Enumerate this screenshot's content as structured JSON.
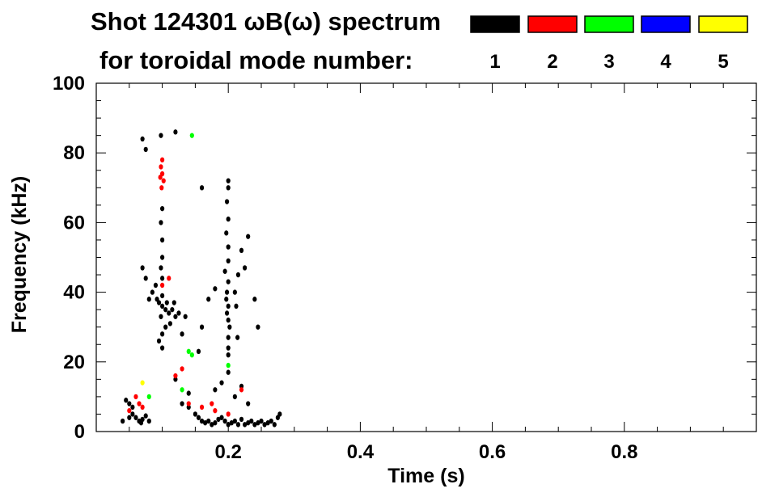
{
  "title_line1": "Shot 124301 ωB(ω) spectrum",
  "title_line2": "for toroidal mode number:",
  "legend": [
    {
      "label": "1",
      "color": "#000000"
    },
    {
      "label": "2",
      "color": "#ff0000"
    },
    {
      "label": "3",
      "color": "#00ff00"
    },
    {
      "label": "4",
      "color": "#0000ff"
    },
    {
      "label": "5",
      "color": "#ffff00"
    }
  ],
  "chart_data": {
    "type": "scatter",
    "title": "Shot 124301 ωB(ω) spectrum",
    "subtitle": "for toroidal mode number:",
    "xlabel": "Time (s)",
    "ylabel": "Frequency (kHz)",
    "xlim": [
      0.0,
      1.0
    ],
    "ylim": [
      0,
      100
    ],
    "xticks": [
      0.2,
      0.4,
      0.6,
      0.8
    ],
    "xtick_labels": [
      "0.2",
      "0.4",
      "0.6",
      "0.8"
    ],
    "yticks": [
      0,
      20,
      40,
      60,
      80,
      100
    ],
    "ytick_labels": [
      "0",
      "20",
      "40",
      "60",
      "80",
      "100"
    ],
    "grid": false,
    "series": [
      {
        "name": "1",
        "color": "#000000",
        "points": [
          [
            0.095,
            37
          ],
          [
            0.1,
            36
          ],
          [
            0.105,
            35
          ],
          [
            0.098,
            33
          ],
          [
            0.11,
            34
          ],
          [
            0.092,
            38
          ],
          [
            0.1,
            39
          ],
          [
            0.107,
            37
          ],
          [
            0.115,
            35
          ],
          [
            0.12,
            33
          ],
          [
            0.125,
            34
          ],
          [
            0.135,
            33
          ],
          [
            0.09,
            42
          ],
          [
            0.085,
            40
          ],
          [
            0.08,
            38
          ],
          [
            0.075,
            44
          ],
          [
            0.07,
            47
          ],
          [
            0.1,
            44
          ],
          [
            0.1,
            50
          ],
          [
            0.1,
            55
          ],
          [
            0.098,
            60
          ],
          [
            0.1,
            64
          ],
          [
            0.105,
            30
          ],
          [
            0.1,
            28
          ],
          [
            0.095,
            26
          ],
          [
            0.1,
            24
          ],
          [
            0.098,
            47
          ],
          [
            0.112,
            31
          ],
          [
            0.118,
            37
          ],
          [
            0.197,
            38
          ],
          [
            0.2,
            36
          ],
          [
            0.198,
            34
          ],
          [
            0.2,
            32
          ],
          [
            0.202,
            30
          ],
          [
            0.2,
            27
          ],
          [
            0.2,
            24
          ],
          [
            0.2,
            22
          ],
          [
            0.198,
            40
          ],
          [
            0.2,
            43
          ],
          [
            0.195,
            46
          ],
          [
            0.2,
            49
          ],
          [
            0.2,
            53
          ],
          [
            0.197,
            57
          ],
          [
            0.2,
            61
          ],
          [
            0.198,
            66
          ],
          [
            0.2,
            70
          ],
          [
            0.21,
            40
          ],
          [
            0.212,
            36
          ],
          [
            0.215,
            45
          ],
          [
            0.18,
            41
          ],
          [
            0.17,
            38
          ],
          [
            0.24,
            38
          ],
          [
            0.245,
            30
          ],
          [
            0.23,
            56
          ],
          [
            0.225,
            47
          ],
          [
            0.22,
            52
          ],
          [
            0.214,
            27
          ],
          [
            0.04,
            3
          ],
          [
            0.05,
            4
          ],
          [
            0.055,
            5
          ],
          [
            0.06,
            4
          ],
          [
            0.065,
            3
          ],
          [
            0.068,
            2.5
          ],
          [
            0.07,
            3.5
          ],
          [
            0.075,
            4.5
          ],
          [
            0.08,
            3
          ],
          [
            0.05,
            8
          ],
          [
            0.045,
            9
          ],
          [
            0.055,
            7
          ],
          [
            0.13,
            8
          ],
          [
            0.14,
            7
          ],
          [
            0.15,
            5
          ],
          [
            0.155,
            4
          ],
          [
            0.16,
            3
          ],
          [
            0.165,
            2.5
          ],
          [
            0.17,
            3
          ],
          [
            0.175,
            2
          ],
          [
            0.18,
            2.5
          ],
          [
            0.185,
            3.5
          ],
          [
            0.19,
            4
          ],
          [
            0.195,
            3
          ],
          [
            0.2,
            2
          ],
          [
            0.205,
            2.5
          ],
          [
            0.21,
            3
          ],
          [
            0.215,
            2
          ],
          [
            0.22,
            3.5
          ],
          [
            0.225,
            2
          ],
          [
            0.23,
            2.5
          ],
          [
            0.235,
            3
          ],
          [
            0.24,
            2
          ],
          [
            0.245,
            2.5
          ],
          [
            0.25,
            3
          ],
          [
            0.255,
            2
          ],
          [
            0.26,
            2.5
          ],
          [
            0.265,
            3
          ],
          [
            0.27,
            2
          ],
          [
            0.275,
            4
          ],
          [
            0.278,
            5
          ],
          [
            0.18,
            12
          ],
          [
            0.19,
            14
          ],
          [
            0.2,
            17
          ],
          [
            0.21,
            10
          ],
          [
            0.22,
            13
          ],
          [
            0.23,
            8
          ],
          [
            0.14,
            11
          ],
          [
            0.12,
            15
          ],
          [
            0.155,
            23
          ],
          [
            0.16,
            30
          ],
          [
            0.13,
            28
          ],
          [
            0.07,
            84
          ],
          [
            0.075,
            81
          ],
          [
            0.098,
            85
          ],
          [
            0.12,
            86
          ],
          [
            0.16,
            70
          ],
          [
            0.2,
            72
          ]
        ]
      },
      {
        "name": "2",
        "color": "#ff0000",
        "points": [
          [
            0.098,
            76
          ],
          [
            0.1,
            74
          ],
          [
            0.102,
            72
          ],
          [
            0.1,
            78
          ],
          [
            0.099,
            70
          ],
          [
            0.097,
            73
          ],
          [
            0.06,
            10
          ],
          [
            0.065,
            8
          ],
          [
            0.07,
            7
          ],
          [
            0.12,
            16
          ],
          [
            0.13,
            18
          ],
          [
            0.14,
            8
          ],
          [
            0.16,
            7
          ],
          [
            0.175,
            8
          ],
          [
            0.18,
            6
          ],
          [
            0.1,
            42
          ],
          [
            0.11,
            44
          ],
          [
            0.2,
            5
          ],
          [
            0.22,
            12
          ],
          [
            0.05,
            6
          ]
        ]
      },
      {
        "name": "3",
        "color": "#00ff00",
        "points": [
          [
            0.145,
            85
          ],
          [
            0.14,
            23
          ],
          [
            0.145,
            22
          ],
          [
            0.08,
            10
          ],
          [
            0.13,
            12
          ],
          [
            0.2,
            19
          ]
        ]
      },
      {
        "name": "4",
        "color": "#0000ff",
        "points": []
      },
      {
        "name": "5",
        "color": "#ffff00",
        "points": [
          [
            0.07,
            14
          ]
        ]
      }
    ]
  }
}
